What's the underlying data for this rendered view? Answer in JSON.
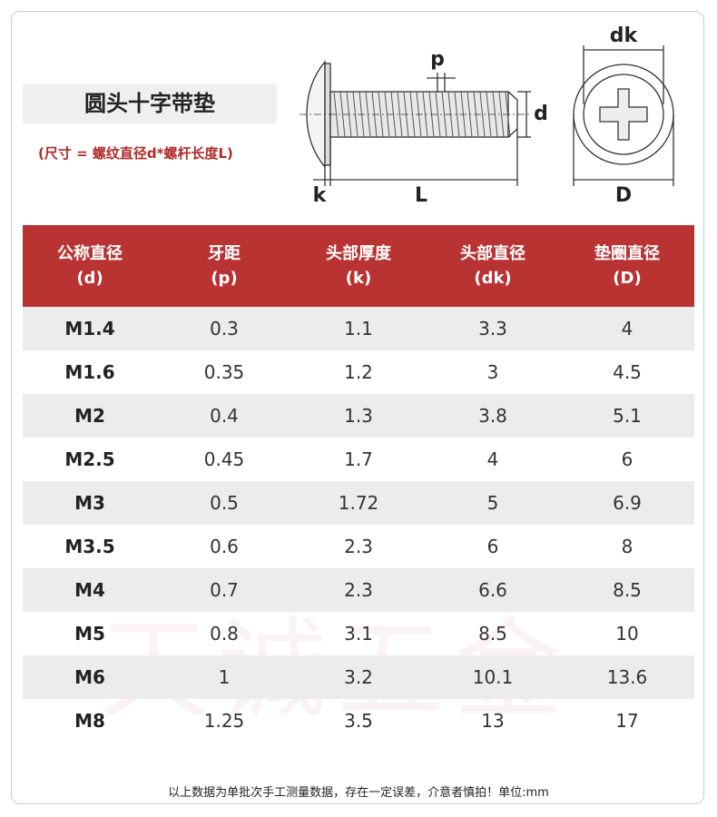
{
  "title": "圆头十字带垫",
  "subtitle": "(尺寸 = 螺纹直径d*螺杆长度L)",
  "diagram": {
    "p": "p",
    "d": "d",
    "k": "k",
    "L": "L",
    "dk": "dk",
    "D": "D"
  },
  "watermark": "天诚五金",
  "table": {
    "header": [
      [
        "公称直径",
        "(d)"
      ],
      [
        "牙距",
        "(p)"
      ],
      [
        "头部厚度",
        "(k)"
      ],
      [
        "头部直径",
        "(dk)"
      ],
      [
        "垫圈直径",
        "(D)"
      ]
    ],
    "rows": [
      [
        "M1.4",
        0.3,
        1.1,
        3.3,
        4
      ],
      [
        "M1.6",
        0.35,
        1.2,
        3,
        4.5
      ],
      [
        "M2",
        0.4,
        1.3,
        3.8,
        5.1
      ],
      [
        "M2.5",
        0.45,
        1.7,
        4,
        6
      ],
      [
        "M3",
        0.5,
        1.72,
        5,
        6.9
      ],
      [
        "M3.5",
        0.6,
        2.3,
        6,
        8
      ],
      [
        "M4",
        0.7,
        2.3,
        6.6,
        8.5
      ],
      [
        "M5",
        0.8,
        3.1,
        8.5,
        10
      ],
      [
        "M6",
        1,
        3.2,
        10.1,
        13.6
      ],
      [
        "M8",
        1.25,
        3.5,
        13,
        17
      ]
    ]
  },
  "footer": "以上数据为单批次手工测量数据，存在一定误差，介意者慎拍！单位:mm"
}
